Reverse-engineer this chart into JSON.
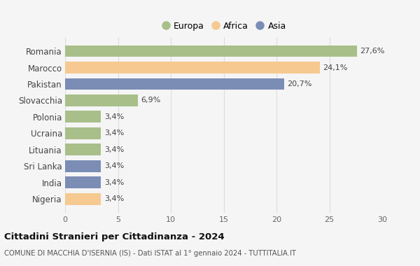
{
  "categories": [
    "Romania",
    "Marocco",
    "Pakistan",
    "Slovacchia",
    "Polonia",
    "Ucraina",
    "Lituania",
    "Sri Lanka",
    "India",
    "Nigeria"
  ],
  "values": [
    27.6,
    24.1,
    20.7,
    6.9,
    3.4,
    3.4,
    3.4,
    3.4,
    3.4,
    3.4
  ],
  "labels": [
    "27,6%",
    "24,1%",
    "20,7%",
    "6,9%",
    "3,4%",
    "3,4%",
    "3,4%",
    "3,4%",
    "3,4%",
    "3,4%"
  ],
  "colors": [
    "#a8bf8a",
    "#f5c990",
    "#7b8db5",
    "#a8bf8a",
    "#a8bf8a",
    "#a8bf8a",
    "#a8bf8a",
    "#7b8db5",
    "#7b8db5",
    "#f5c990"
  ],
  "continents": [
    "Europa",
    "Africa",
    "Asia"
  ],
  "legend_colors": [
    "#a8bf8a",
    "#f5c990",
    "#7b8db5"
  ],
  "title": "Cittadini Stranieri per Cittadinanza - 2024",
  "subtitle": "COMUNE DI MACCHIA D'ISERNIA (IS) - Dati ISTAT al 1° gennaio 2024 - TUTTITALIA.IT",
  "xlim": [
    0,
    30
  ],
  "xticks": [
    0,
    5,
    10,
    15,
    20,
    25,
    30
  ],
  "bg_color": "#f5f5f5",
  "grid_color": "#dddddd"
}
